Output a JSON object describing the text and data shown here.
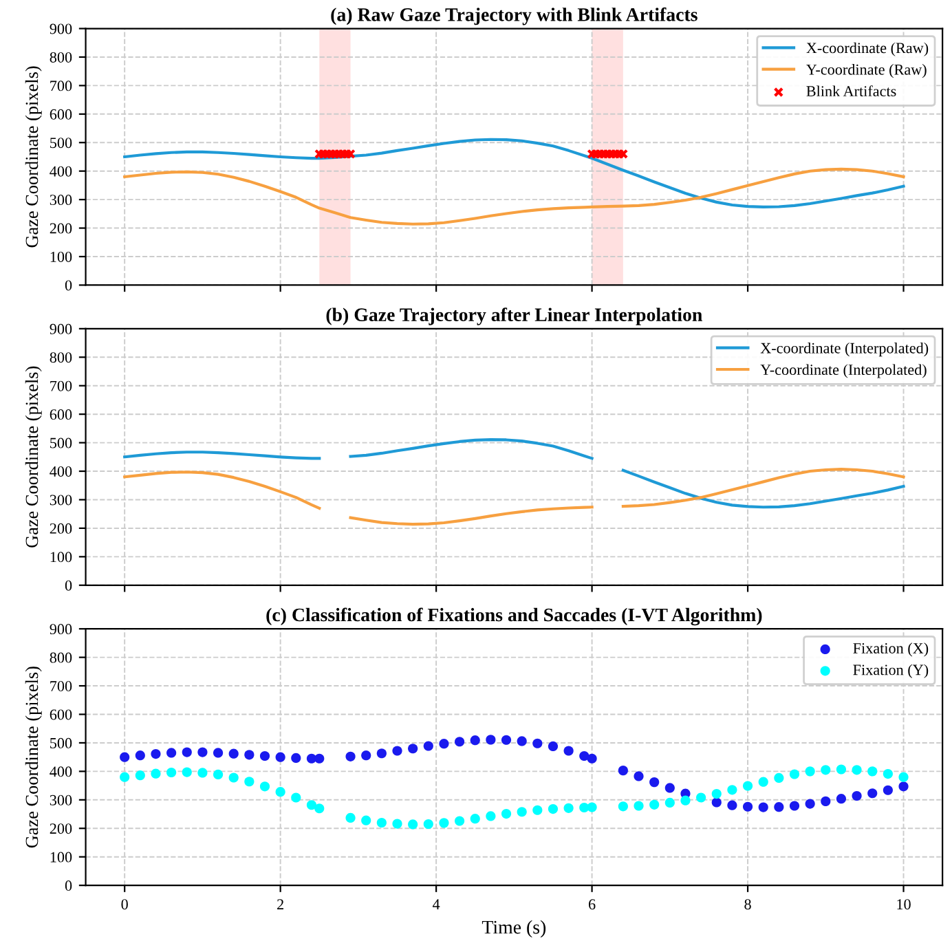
{
  "chart_data": [
    {
      "type": "line",
      "title": "(a) Raw Gaze Trajectory with Blink Artifacts",
      "ylabel": "Gaze Coordinate (pixels)",
      "x": [
        0,
        0.2,
        0.4,
        0.6,
        0.8,
        1.0,
        1.2,
        1.4,
        1.6,
        1.8,
        2.0,
        2.2,
        2.4,
        2.5,
        2.7,
        2.9,
        3.1,
        3.3,
        3.5,
        3.7,
        3.9,
        4.1,
        4.3,
        4.5,
        4.7,
        4.9,
        5.1,
        5.3,
        5.5,
        5.7,
        5.9,
        6.0,
        6.2,
        6.4,
        6.6,
        6.8,
        7.0,
        7.2,
        7.4,
        7.6,
        7.8,
        8.0,
        8.2,
        8.4,
        8.6,
        8.8,
        9.0,
        9.2,
        9.4,
        9.6,
        9.8,
        10
      ],
      "series": [
        {
          "name": "X-coordinate (Raw)",
          "color": "#1f9ad6",
          "values": [
            450,
            456,
            461,
            465,
            467,
            467,
            465,
            462,
            458,
            454,
            450,
            447,
            445,
            445,
            448,
            452,
            456,
            463,
            472,
            480,
            489,
            497,
            504,
            509,
            511,
            510,
            506,
            498,
            488,
            472,
            454,
            445,
            424,
            403,
            383,
            362,
            342,
            322,
            305,
            291,
            281,
            276,
            274,
            275,
            279,
            286,
            295,
            304,
            314,
            323,
            334,
            347
          ]
        },
        {
          "name": "Y-coordinate (Raw)",
          "color": "#f7a040",
          "values": [
            380,
            386,
            392,
            396,
            397,
            395,
            389,
            378,
            364,
            347,
            328,
            308,
            282,
            270,
            254,
            237,
            228,
            220,
            216,
            214,
            215,
            219,
            226,
            234,
            243,
            251,
            258,
            264,
            268,
            271,
            273,
            274,
            276,
            277,
            279,
            283,
            290,
            298,
            308,
            321,
            335,
            349,
            363,
            377,
            390,
            400,
            405,
            407,
            405,
            400,
            391,
            380
          ]
        },
        {
          "name": "Blink Artifacts",
          "type": "scatter",
          "marker": "cross",
          "color": "#ff0000",
          "x": [
            2.5,
            2.55,
            2.6,
            2.65,
            2.7,
            2.75,
            2.8,
            2.85,
            2.9,
            6.0,
            6.05,
            6.1,
            6.15,
            6.2,
            6.25,
            6.3,
            6.35,
            6.4
          ],
          "values": [
            460,
            460,
            460,
            460,
            460,
            460,
            460,
            460,
            460,
            460,
            460,
            460,
            460,
            460,
            460,
            460,
            460,
            460
          ]
        }
      ],
      "bands": [
        {
          "axis": "x",
          "from": 2.5,
          "to": 2.9,
          "color": "#ffe0e0"
        },
        {
          "axis": "x",
          "from": 6.0,
          "to": 6.4,
          "color": "#ffe0e0"
        }
      ],
      "xlim": [
        -0.5,
        10.5
      ],
      "xticks": [
        0,
        2,
        4,
        6,
        8,
        10
      ],
      "ylim": [
        0,
        900
      ],
      "yticks": [
        0,
        100,
        200,
        300,
        400,
        500,
        600,
        700,
        800,
        900
      ],
      "tick_labels": "y",
      "grid": true,
      "legend": "top right"
    },
    {
      "type": "line",
      "title": "(b) Gaze Trajectory after Linear Interpolation",
      "ylabel": "Gaze Coordinate (pixels)",
      "x": [
        0,
        0.2,
        0.4,
        0.6,
        0.8,
        1.0,
        1.2,
        1.4,
        1.6,
        1.8,
        2.0,
        2.2,
        2.4,
        2.5,
        2.7,
        2.9,
        3.1,
        3.3,
        3.5,
        3.7,
        3.9,
        4.1,
        4.3,
        4.5,
        4.7,
        4.9,
        5.1,
        5.3,
        5.5,
        5.7,
        5.9,
        6.0,
        6.2,
        6.4,
        6.6,
        6.8,
        7.0,
        7.2,
        7.4,
        7.6,
        7.8,
        8.0,
        8.2,
        8.4,
        8.6,
        8.8,
        9.0,
        9.2,
        9.4,
        9.6,
        9.8,
        10
      ],
      "series": [
        {
          "name": "X-coordinate (Interpolated)",
          "color": "#1f9ad6",
          "values": [
            450,
            456,
            461,
            465,
            467,
            467,
            465,
            462,
            458,
            454,
            450,
            447,
            445,
            445,
            null,
            452,
            456,
            463,
            472,
            480,
            489,
            497,
            504,
            509,
            511,
            510,
            506,
            498,
            488,
            472,
            454,
            445,
            null,
            403,
            383,
            362,
            342,
            322,
            305,
            291,
            281,
            276,
            274,
            275,
            279,
            286,
            295,
            304,
            314,
            323,
            334,
            347
          ]
        },
        {
          "name": "Y-coordinate (Interpolated)",
          "color": "#f7a040",
          "values": [
            380,
            386,
            392,
            396,
            397,
            395,
            389,
            378,
            364,
            347,
            328,
            308,
            282,
            270,
            null,
            237,
            228,
            220,
            216,
            214,
            215,
            219,
            226,
            234,
            243,
            251,
            258,
            264,
            268,
            271,
            273,
            274,
            null,
            277,
            279,
            283,
            290,
            298,
            308,
            321,
            335,
            349,
            363,
            377,
            390,
            400,
            405,
            407,
            405,
            400,
            391,
            380
          ]
        }
      ],
      "xlim": [
        -0.5,
        10.5
      ],
      "xticks": [
        0,
        2,
        4,
        6,
        8,
        10
      ],
      "ylim": [
        0,
        900
      ],
      "yticks": [
        0,
        100,
        200,
        300,
        400,
        500,
        600,
        700,
        800,
        900
      ],
      "tick_labels": "y",
      "grid": true,
      "legend": "top right"
    },
    {
      "type": "scatter",
      "title": "(c) Classification of Fixations and Saccades (I-VT Algorithm)",
      "xlabel": "Time (s)",
      "ylabel": "Gaze Coordinate (pixels)",
      "marker": "circle",
      "x": [
        0,
        0.2,
        0.4,
        0.6,
        0.8,
        1.0,
        1.2,
        1.4,
        1.6,
        1.8,
        2.0,
        2.2,
        2.4,
        2.5,
        2.7,
        2.9,
        3.1,
        3.3,
        3.5,
        3.7,
        3.9,
        4.1,
        4.3,
        4.5,
        4.7,
        4.9,
        5.1,
        5.3,
        5.5,
        5.7,
        5.9,
        6.0,
        6.2,
        6.4,
        6.6,
        6.8,
        7.0,
        7.2,
        7.4,
        7.6,
        7.8,
        8.0,
        8.2,
        8.4,
        8.6,
        8.8,
        9.0,
        9.2,
        9.4,
        9.6,
        9.8,
        10
      ],
      "series": [
        {
          "name": "Fixation (X)",
          "color": "#1a1aee",
          "values": [
            450,
            456,
            461,
            465,
            467,
            467,
            465,
            462,
            458,
            454,
            450,
            447,
            445,
            445,
            null,
            452,
            456,
            463,
            472,
            480,
            489,
            497,
            504,
            509,
            511,
            510,
            506,
            498,
            488,
            472,
            454,
            445,
            null,
            403,
            383,
            362,
            342,
            322,
            null,
            291,
            281,
            276,
            274,
            275,
            279,
            286,
            295,
            304,
            314,
            323,
            334,
            347
          ]
        },
        {
          "name": "Fixation (Y)",
          "color": "#00ffff",
          "values": [
            380,
            386,
            392,
            396,
            397,
            395,
            389,
            378,
            364,
            347,
            328,
            308,
            282,
            270,
            null,
            237,
            228,
            220,
            216,
            214,
            215,
            219,
            226,
            234,
            243,
            251,
            258,
            264,
            268,
            271,
            273,
            274,
            null,
            277,
            279,
            283,
            290,
            298,
            308,
            321,
            335,
            349,
            363,
            377,
            390,
            400,
            405,
            407,
            405,
            400,
            391,
            380
          ]
        }
      ],
      "xlim": [
        -0.5,
        10.5
      ],
      "xticks": [
        0,
        2,
        4,
        6,
        8,
        10
      ],
      "ylim": [
        0,
        900
      ],
      "yticks": [
        0,
        100,
        200,
        300,
        400,
        500,
        600,
        700,
        800,
        900
      ],
      "grid": true,
      "legend": "top right"
    }
  ]
}
